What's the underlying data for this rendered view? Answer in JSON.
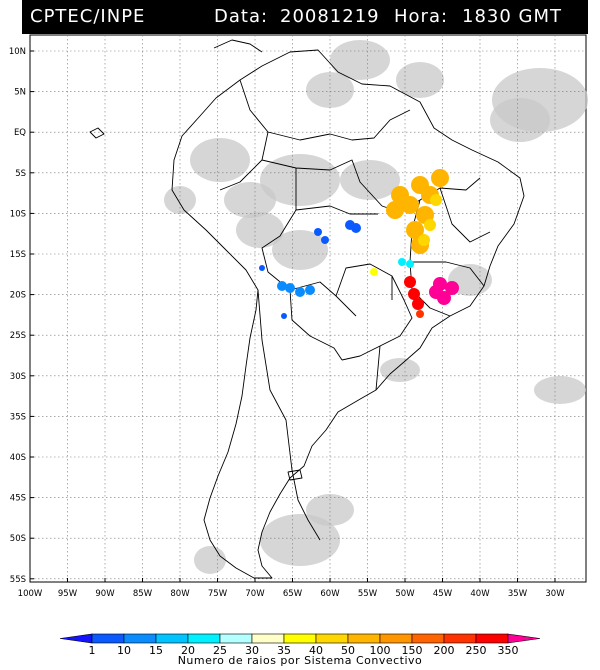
{
  "header": {
    "source": "CPTEC/INPE",
    "data_label": "Data:",
    "date": "20081219",
    "hora_label": "Hora:",
    "time": "1830 GMT"
  },
  "map": {
    "lat_ticks": [
      "10N",
      "5N",
      "EQ",
      "5S",
      "10S",
      "15S",
      "20S",
      "25S",
      "30S",
      "35S",
      "40S",
      "45S",
      "50S",
      "55S"
    ],
    "lon_ticks": [
      "100W",
      "95W",
      "90W",
      "85W",
      "80W",
      "75W",
      "70W",
      "65W",
      "60W",
      "55W",
      "50W",
      "45W",
      "40W",
      "35W",
      "30W"
    ],
    "grid": true,
    "background_cloud_color": "#c8c8c8"
  },
  "legend": {
    "title": "Numero de raios por Sistema Convectivo",
    "ticks": [
      "1",
      "10",
      "15",
      "20",
      "25",
      "30",
      "35",
      "40",
      "50",
      "100",
      "150",
      "200",
      "250",
      "350"
    ],
    "colors": [
      "#1414ff",
      "#0a5aff",
      "#0a8cff",
      "#00c3ff",
      "#00f0ff",
      "#b4ffff",
      "#ffffc8",
      "#ffff00",
      "#ffd700",
      "#ffb400",
      "#ff9600",
      "#ff6400",
      "#ff3200",
      "#ff0000",
      "#ff0096"
    ]
  }
}
